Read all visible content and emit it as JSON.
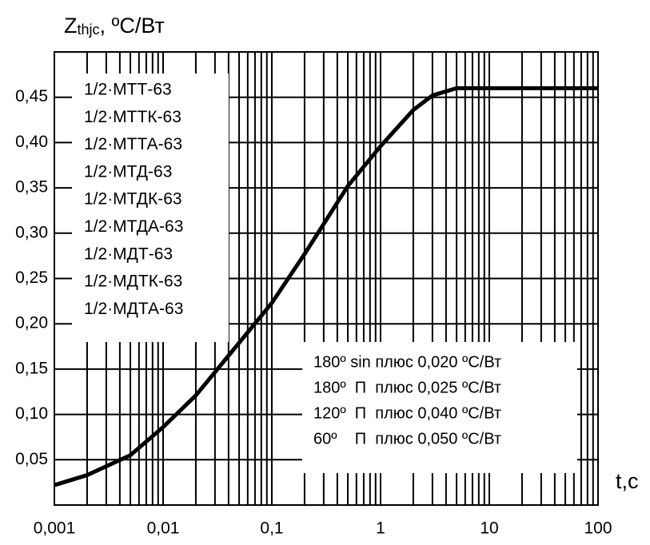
{
  "chart_data": {
    "type": "line",
    "y_label": {
      "main": "Z",
      "sub": "thjc",
      "rest": ", ºC/Вт"
    },
    "x_label": "t,c",
    "x": [
      0.001,
      0.002,
      0.005,
      0.01,
      0.02,
      0.05,
      0.1,
      0.2,
      0.5,
      1,
      2,
      3,
      5,
      10,
      100
    ],
    "series": [
      {
        "color": "#000000",
        "values": [
          0.022,
          0.033,
          0.055,
          0.086,
          0.121,
          0.179,
          0.223,
          0.277,
          0.352,
          0.396,
          0.436,
          0.452,
          0.46,
          0.46,
          0.46
        ]
      }
    ],
    "xscale": "log",
    "xlim": [
      0.001,
      100
    ],
    "xticks": [
      {
        "value": 0.001,
        "label": "0,001"
      },
      {
        "value": 0.01,
        "label": "0,01"
      },
      {
        "value": 0.1,
        "label": "0,1"
      },
      1,
      10,
      100
    ],
    "ylim": [
      0,
      0.5
    ],
    "yticks": [
      {
        "value": 0.05,
        "label": "0,05"
      },
      {
        "value": 0.1,
        "label": "0,10"
      },
      {
        "value": 0.15,
        "label": "0,15"
      },
      {
        "value": 0.2,
        "label": "0,20"
      },
      {
        "value": 0.25,
        "label": "0,25"
      },
      {
        "value": 0.3,
        "label": "0,30"
      },
      {
        "value": 0.35,
        "label": "0,35"
      },
      {
        "value": 0.4,
        "label": "0,40"
      },
      {
        "value": 0.45,
        "label": "0,45"
      }
    ],
    "grid": true,
    "minor_grid": true,
    "devices": [
      "1/2·МТТ-63",
      "1/2·МТТК-63",
      "1/2·МТТА-63",
      "1/2·МТД-63",
      "1/2·МТДК-63",
      "1/2·МТДА-63",
      "1/2·МДТ-63",
      "1/2·МДТК-63",
      "1/2·МДТА-63"
    ],
    "notes": [
      "180º sin плюс 0,020 ºC/Вт",
      "180º  П  плюс 0,025 ºC/Вт",
      "120º  П  плюс 0,040 ºC/Вт",
      "60º    П  плюс 0,050 ºC/Вт"
    ]
  }
}
